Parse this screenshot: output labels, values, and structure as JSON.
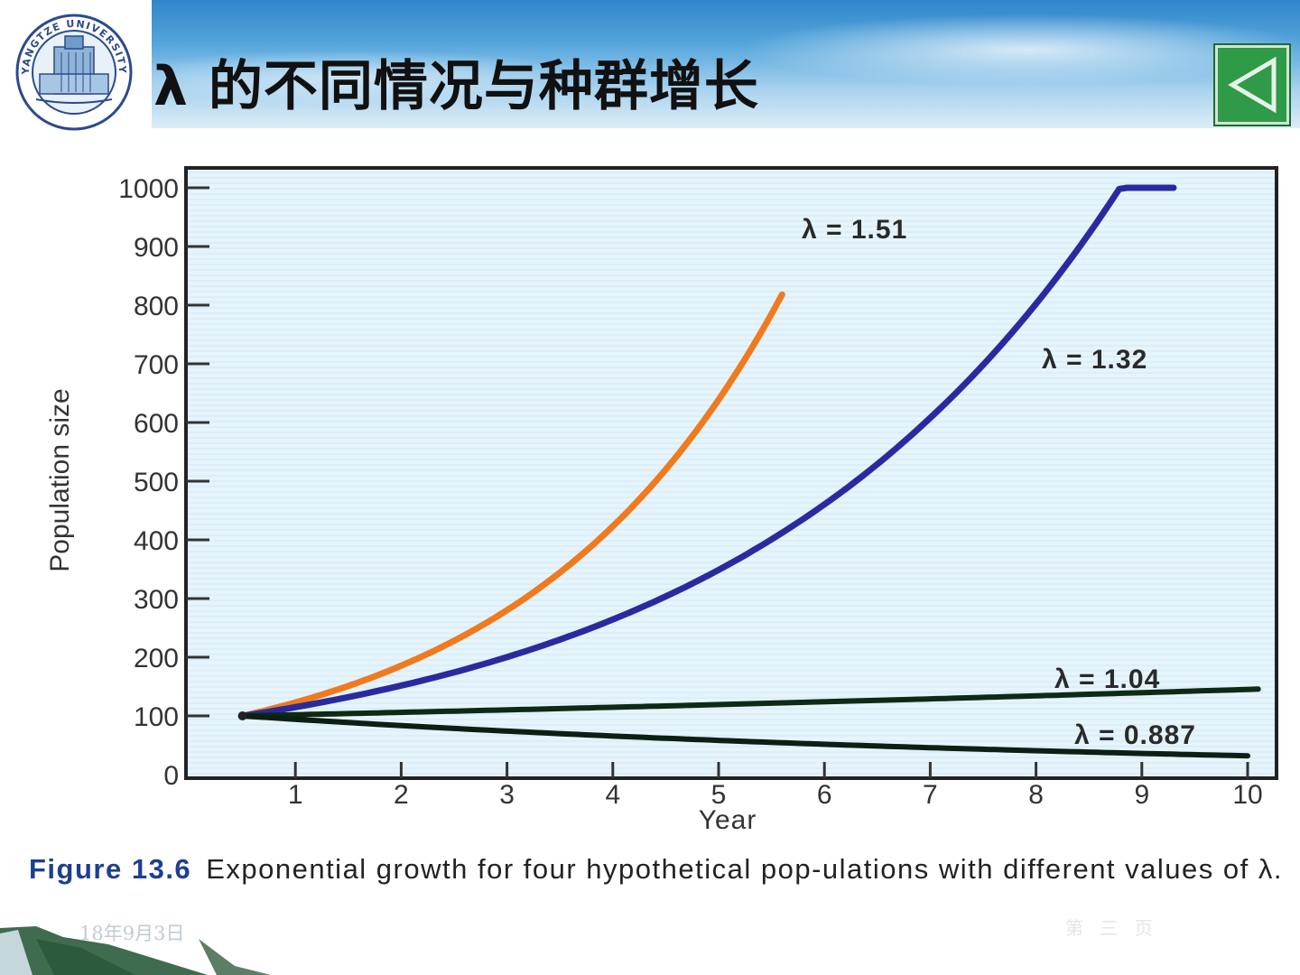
{
  "header": {
    "title": "λ 的不同情况与种群增长",
    "logo_text": "YANGTZE UNIVERSITY",
    "back_button_icon": "triangle-left-icon"
  },
  "chart_data": {
    "type": "line",
    "title": "",
    "xlabel": "Year",
    "ylabel": "Population size",
    "x_ticks": [
      "1",
      "2",
      "3",
      "4",
      "5",
      "6",
      "7",
      "8",
      "9",
      "10"
    ],
    "y_ticks": [
      "0",
      "100",
      "200",
      "300",
      "400",
      "500",
      "600",
      "700",
      "800",
      "900",
      "1000"
    ],
    "xlim": [
      0,
      10
    ],
    "ylim": [
      0,
      1000
    ],
    "grid": false,
    "start": {
      "x": 0.5,
      "y": 100
    },
    "series": [
      {
        "name": "λ = 1.51",
        "lambda": 1.51,
        "x_end": 5.6,
        "color": "#f07a1e"
      },
      {
        "name": "λ = 1.32",
        "lambda": 1.32,
        "x_end": 9.3,
        "color": "#2a2aa0"
      },
      {
        "name": "λ = 1.04",
        "lambda": 1.04,
        "x_end": 10.1,
        "color": "#0d2a14"
      },
      {
        "name": "λ = 0.887",
        "lambda": 0.887,
        "x_end": 10.0,
        "color": "#0c1f12"
      }
    ]
  },
  "caption": {
    "label": "Figure 13.6",
    "text": "Exponential growth for four hypothetical pop-ulations with different values of λ."
  },
  "footer": {
    "date": "18年9月3日",
    "page": "第 三 页"
  }
}
